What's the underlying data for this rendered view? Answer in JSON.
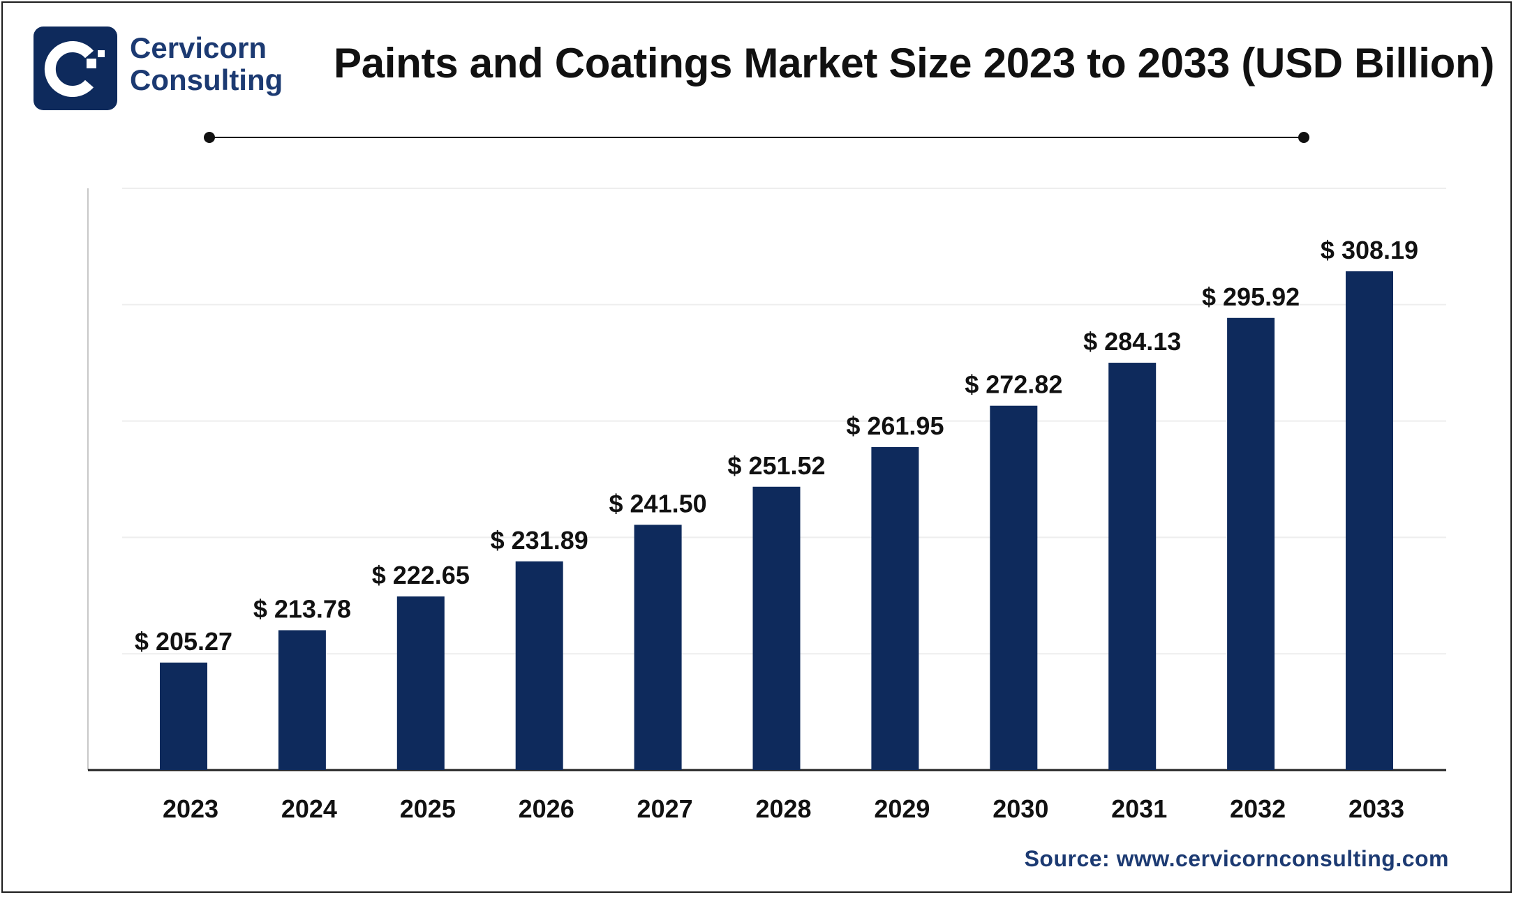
{
  "header": {
    "brand_line1": "Cervicorn",
    "brand_line2": "Consulting",
    "title": "Paints and Coatings Market Size 2023 to 2033 (USD Billion)"
  },
  "colors": {
    "bar": "#0e2a5c",
    "brand": "#1c3a72",
    "text": "#111111",
    "grid": "#eeeeee"
  },
  "chart_data": {
    "type": "bar",
    "title": "Paints and Coatings Market Size 2023 to 2033 (USD Billion)",
    "categories": [
      "2023",
      "2024",
      "2025",
      "2026",
      "2027",
      "2028",
      "2029",
      "2030",
      "2031",
      "2032",
      "2033"
    ],
    "values": [
      205.27,
      213.78,
      222.65,
      231.89,
      241.5,
      251.52,
      261.95,
      272.82,
      284.13,
      295.92,
      308.19
    ],
    "value_labels": [
      "$ 205.27",
      "$ 213.78",
      "$ 222.65",
      "$ 231.89",
      "$ 241.50",
      "$ 251.52",
      "$ 261.95",
      "$ 272.82",
      "$ 284.13",
      "$ 295.92",
      "$ 308.19"
    ],
    "xlabel": "",
    "ylabel": "",
    "ylim": [
      177,
      330
    ],
    "grid": true,
    "legend": "none"
  },
  "footer": {
    "source": "Source: www.cervicornconsulting.com"
  }
}
